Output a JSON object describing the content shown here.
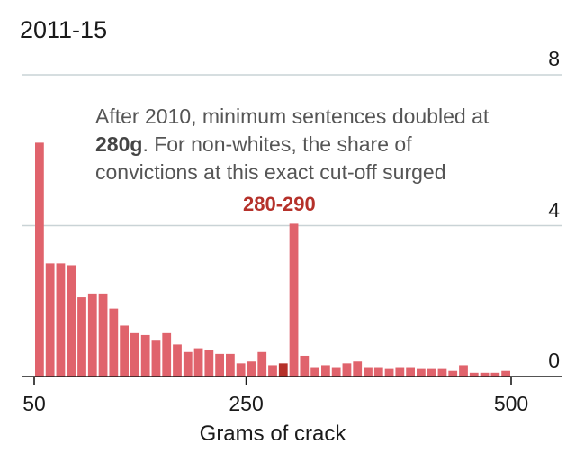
{
  "chart_data": {
    "type": "bar",
    "title": "2011-15",
    "annotation": {
      "before": "After 2010, minimum sentences doubled at ",
      "bold": "280g",
      "after": ". For non-whites, the share of convictions at this exact cut-off surged"
    },
    "highlight": {
      "label": "280-290",
      "index": 23,
      "color": "#b5312a"
    },
    "bar_color": "#e0636c",
    "bin_width": 10,
    "x_start": 50,
    "values": [
      6.2,
      3.0,
      3.0,
      2.95,
      2.1,
      2.2,
      2.2,
      1.8,
      1.35,
      1.15,
      1.1,
      0.95,
      1.15,
      0.85,
      0.65,
      0.75,
      0.7,
      0.6,
      0.6,
      0.35,
      0.4,
      0.65,
      0.3,
      0.35,
      4.05,
      0.55,
      0.25,
      0.3,
      0.25,
      0.35,
      0.4,
      0.25,
      0.25,
      0.2,
      0.25,
      0.25,
      0.2,
      0.2,
      0.2,
      0.15,
      0.3,
      0.1,
      0.1,
      0.1,
      0.15
    ],
    "xlabel": "Grams of crack",
    "xticks": [
      50,
      250,
      500
    ],
    "xlim": [
      40,
      600
    ],
    "yticks": [
      0,
      4,
      8
    ],
    "ylim": [
      0,
      8
    ],
    "y_axis_side": "right",
    "grid": true
  }
}
